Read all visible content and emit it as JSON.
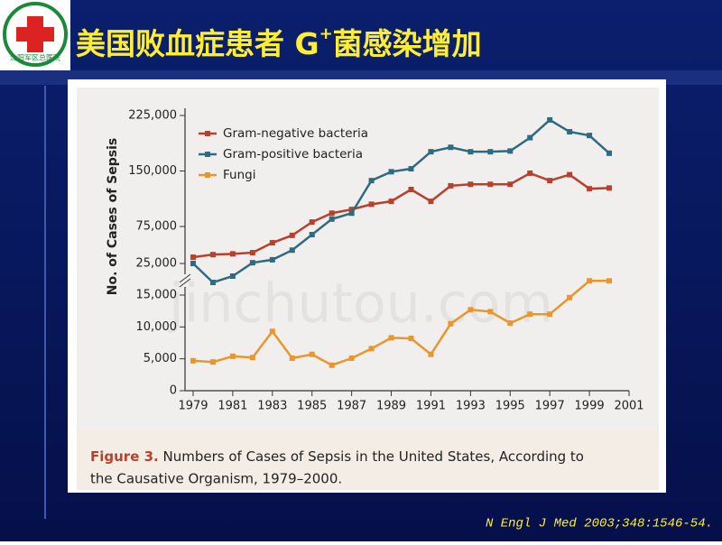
{
  "slide": {
    "title_main": "美国败血症患者 G",
    "title_sup": "+",
    "title_end": "菌感染增加",
    "logo_text": "沈阳军区总医院",
    "citation": "N Engl J Med 2003;348:1546-54.",
    "watermark": "jinchutou.com"
  },
  "chart_data": {
    "type": "line",
    "y_label": "No. of Cases of Sepsis",
    "caption_bold": "Figure 3.",
    "caption_line1": "Numbers of Cases of Sepsis in the United States, According to",
    "caption_line2": "the Causative Organism, 1979–2000.",
    "x": [
      1979,
      1980,
      1981,
      1982,
      1983,
      1984,
      1985,
      1986,
      1987,
      1988,
      1989,
      1990,
      1991,
      1992,
      1993,
      1994,
      1995,
      1996,
      1997,
      1998,
      1999,
      2000
    ],
    "xlim": [
      1979,
      2001
    ],
    "xticks": [
      1979,
      1981,
      1983,
      1985,
      1987,
      1989,
      1991,
      1993,
      1995,
      1997,
      1999,
      2001
    ],
    "ylim": [
      0,
      225000
    ],
    "y_break": [
      15000,
      25000
    ],
    "yticks": [
      {
        "value": 0,
        "label": "0"
      },
      {
        "value": 5000,
        "label": "5,000"
      },
      {
        "value": 10000,
        "label": "10,000"
      },
      {
        "value": 15000,
        "label": "15,000"
      },
      {
        "value": 25000,
        "label": "25,000"
      },
      {
        "value": 75000,
        "label": "75,000"
      },
      {
        "value": 150000,
        "label": "150,000"
      },
      {
        "value": 225000,
        "label": "225,000"
      }
    ],
    "legend": "upper left",
    "series": [
      {
        "name": "Gram-negative bacteria",
        "color": "#b8412e",
        "values": [
          33500,
          37000,
          38000,
          39600,
          53000,
          63000,
          81000,
          93000,
          98000,
          105000,
          109000,
          125000,
          109000,
          130000,
          132000,
          132000,
          132000,
          147000,
          137000,
          145000,
          126000,
          127000
        ]
      },
      {
        "name": "Gram-positive bacteria",
        "color": "#2e6b80",
        "values": [
          25000,
          19000,
          21000,
          26000,
          30000,
          43000,
          64000,
          85000,
          93000,
          137000,
          149000,
          153000,
          176000,
          182000,
          176000,
          176000,
          177000,
          195000,
          219000,
          203000,
          198000,
          174000
        ]
      },
      {
        "name": "Fungi",
        "color": "#e8962e",
        "values": [
          4700,
          4500,
          5400,
          5200,
          9300,
          5100,
          5700,
          4000,
          5100,
          6600,
          8300,
          8200,
          5700,
          10500,
          12700,
          12400,
          10600,
          12000,
          12000,
          14600,
          19500,
          19500
        ]
      }
    ]
  }
}
